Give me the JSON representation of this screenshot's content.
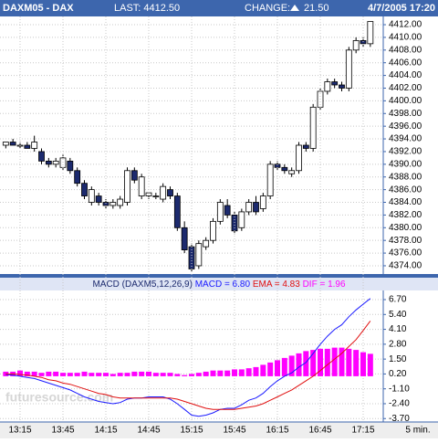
{
  "chart_data": [
    {
      "type": "candlestick",
      "title": "DAXM05 - DAX",
      "last": "LAST: 4412.50",
      "change_label": "CHANGE:",
      "change": "21.50",
      "date": "4/7/2005 17:20",
      "open": [
        4393,
        4393.5,
        4393,
        4393,
        4392.5,
        4392,
        4390.5,
        4390,
        4389.5,
        4390.5,
        4389,
        4387,
        4384,
        4385,
        4384,
        4383.5,
        4383.5,
        4384,
        4389,
        4385,
        4385,
        4385,
        4384.5,
        4386,
        4385,
        4380,
        4377,
        4374,
        4377,
        4378,
        4381,
        4383.5,
        4382,
        4380,
        4382.5,
        4384,
        4383,
        4385,
        4390,
        4389.5,
        4388.5,
        4389,
        4393,
        4392.5,
        4399,
        4401.5,
        4403,
        4402.5,
        4402,
        4408,
        4409.5,
        4409
      ],
      "high": [
        4393.5,
        4394,
        4393.5,
        4393.5,
        4394.5,
        4392.5,
        4391,
        4391,
        4391.5,
        4391,
        4389.5,
        4387.5,
        4386.5,
        4385.5,
        4384.5,
        4384.5,
        4385,
        4389.5,
        4389.5,
        4388.5,
        4385.5,
        4385.5,
        4387,
        4386.5,
        4385.5,
        4381,
        4377.5,
        4378,
        4378.5,
        4381.5,
        4384.5,
        4384.5,
        4382.5,
        4383,
        4384.5,
        4385,
        4385.5,
        4390.5,
        4390.5,
        4390,
        4389.5,
        4393.5,
        4393.5,
        4399.5,
        4402,
        4403.5,
        4403.5,
        4403,
        4408.5,
        4410,
        4410,
        4412.5
      ],
      "low": [
        4392.5,
        4393,
        4392.5,
        4392.5,
        4392,
        4390,
        4389.5,
        4389.5,
        4389,
        4388.5,
        4386.5,
        4384.5,
        4383.5,
        4383.5,
        4383,
        4383,
        4383,
        4383.5,
        4387,
        4384.5,
        4384.5,
        4384.5,
        4384,
        4384.5,
        4379.5,
        4376,
        4373,
        4373.5,
        4376.5,
        4377.5,
        4380.5,
        4381.5,
        4379,
        4379.5,
        4382,
        4382,
        4382.5,
        4384.5,
        4389,
        4388.5,
        4388,
        4388.5,
        4392,
        4392,
        4398.5,
        4401,
        4402,
        4401.5,
        4401.5,
        4407.5,
        4408.5,
        4408.5
      ],
      "close": [
        4393.5,
        4393,
        4393,
        4392.5,
        4393.5,
        4390.5,
        4390,
        4390.5,
        4391,
        4389,
        4387,
        4385,
        4386,
        4384,
        4383.5,
        4384,
        4384.5,
        4389,
        4387.5,
        4388,
        4385.5,
        4385,
        4386.5,
        4385,
        4380,
        4376.5,
        4373.5,
        4377.5,
        4378,
        4381,
        4384,
        4382,
        4379.5,
        4382.5,
        4384,
        4382.5,
        4385,
        4390,
        4389.5,
        4389,
        4389,
        4393,
        4392.5,
        4399,
        4401.5,
        4403,
        4402.5,
        4402,
        4408,
        4409.5,
        4409,
        4412.5
      ],
      "ylim": [
        4372.7,
        4413.3
      ],
      "yticks": [
        {
          "value": 4374,
          "label": "4374.00"
        },
        {
          "value": 4376,
          "label": "4376.00"
        },
        {
          "value": 4378,
          "label": "4378.00"
        },
        {
          "value": 4380,
          "label": "4380.00"
        },
        {
          "value": 4382,
          "label": "4382.00"
        },
        {
          "value": 4384,
          "label": "4384.00"
        },
        {
          "value": 4386,
          "label": "4386.00"
        },
        {
          "value": 4388,
          "label": "4388.00"
        },
        {
          "value": 4390,
          "label": "4390.00"
        },
        {
          "value": 4392,
          "label": "4392.00"
        },
        {
          "value": 4394,
          "label": "4394.00"
        },
        {
          "value": 4396,
          "label": "4396.00"
        },
        {
          "value": 4398,
          "label": "4398.00"
        },
        {
          "value": 4400,
          "label": "4400.00"
        },
        {
          "value": 4402,
          "label": "4402.00"
        },
        {
          "value": 4404,
          "label": "4404.00"
        },
        {
          "value": 4406,
          "label": "4406.00"
        },
        {
          "value": 4408,
          "label": "4408.00"
        },
        {
          "value": 4410,
          "label": "4410.00"
        },
        {
          "value": 4412,
          "label": "4412.00"
        }
      ],
      "up_color": "#ffffff",
      "down_color": "#1c2a6e",
      "grid": true
    },
    {
      "type": "macd",
      "title": "MACD (DAXM5,12,26,9)",
      "watermark": "futuresource.com",
      "x_unit": "5 min.",
      "categories": [
        null,
        null,
        "13:15",
        null,
        null,
        null,
        null,
        null,
        "13:45",
        null,
        null,
        null,
        null,
        null,
        "14:15",
        null,
        null,
        null,
        null,
        null,
        "14:45",
        null,
        null,
        null,
        null,
        null,
        "15:15",
        null,
        null,
        null,
        null,
        null,
        "15:45",
        null,
        null,
        null,
        null,
        null,
        "16:15",
        null,
        null,
        null,
        null,
        null,
        "16:45",
        null,
        null,
        null,
        null,
        null,
        "17:15",
        null
      ],
      "series": [
        {
          "name": "MACD = 6.80",
          "color": "#1a1aff",
          "kind": "line",
          "values": [
            0.15,
            0.1,
            0.0,
            -0.1,
            -0.2,
            -0.4,
            -0.6,
            -0.8,
            -1.0,
            -1.2,
            -1.5,
            -1.8,
            -2.0,
            -2.2,
            -2.3,
            -2.4,
            -2.3,
            -2.0,
            -1.9,
            -1.9,
            -1.8,
            -1.8,
            -1.8,
            -2.0,
            -2.4,
            -2.9,
            -3.4,
            -3.5,
            -3.4,
            -3.2,
            -2.9,
            -2.8,
            -2.8,
            -2.5,
            -2.1,
            -1.9,
            -1.5,
            -0.9,
            -0.4,
            0.0,
            0.3,
            0.8,
            1.2,
            2.0,
            2.8,
            3.5,
            4.1,
            4.5,
            5.2,
            5.8,
            6.3,
            6.8
          ]
        },
        {
          "name": "EMA = 4.83",
          "color": "#e01010",
          "kind": "line",
          "values": [
            0.2,
            0.2,
            0.15,
            0.1,
            0.0,
            -0.1,
            -0.3,
            -0.4,
            -0.6,
            -0.7,
            -0.9,
            -1.1,
            -1.3,
            -1.5,
            -1.6,
            -1.8,
            -1.9,
            -1.9,
            -1.9,
            -1.9,
            -1.9,
            -1.9,
            -1.9,
            -1.9,
            -2.0,
            -2.2,
            -2.4,
            -2.6,
            -2.8,
            -2.9,
            -2.9,
            -2.9,
            -2.9,
            -2.8,
            -2.7,
            -2.6,
            -2.4,
            -2.1,
            -1.8,
            -1.5,
            -1.2,
            -0.8,
            -0.4,
            0.0,
            0.5,
            1.0,
            1.5,
            2.0,
            2.6,
            3.2,
            4.0,
            4.83
          ]
        },
        {
          "name": "DIF = 1.96",
          "color": "#ff00ff",
          "kind": "bar",
          "values": [
            0.4,
            0.4,
            0.5,
            0.4,
            0.4,
            0.3,
            0.4,
            0.4,
            0.3,
            0.3,
            0.3,
            0.4,
            0.3,
            0.3,
            0.3,
            0.2,
            0.3,
            0.3,
            0.4,
            0.4,
            0.4,
            0.3,
            0.3,
            0.3,
            0.2,
            0.1,
            0.2,
            0.3,
            0.4,
            0.5,
            0.5,
            0.5,
            0.6,
            0.6,
            0.7,
            0.8,
            1.0,
            1.2,
            1.4,
            1.6,
            1.8,
            2.0,
            2.2,
            2.3,
            2.4,
            2.4,
            2.5,
            2.5,
            2.4,
            2.3,
            2.1,
            1.96
          ]
        }
      ],
      "ylim": [
        -4.0,
        7.5
      ],
      "yticks": [
        {
          "value": 6.7,
          "label": "6.70"
        },
        {
          "value": 5.4,
          "label": "5.40"
        },
        {
          "value": 4.1,
          "label": "4.10"
        },
        {
          "value": 2.8,
          "label": "2.80"
        },
        {
          "value": 1.5,
          "label": "1.50"
        },
        {
          "value": 0.2,
          "label": "0.20"
        },
        {
          "value": -1.1,
          "label": "-1.10"
        },
        {
          "value": -2.4,
          "label": "-2.40"
        },
        {
          "value": -3.7,
          "label": "-3.70"
        }
      ],
      "grid": true
    }
  ]
}
